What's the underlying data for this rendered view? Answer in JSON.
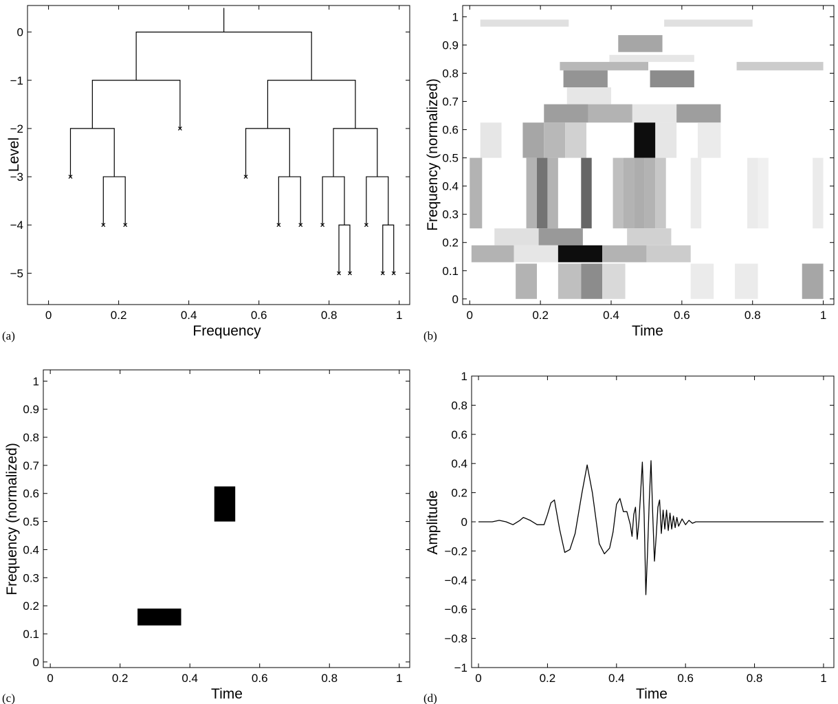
{
  "figure": {
    "panel_labels": [
      "(a)",
      "(b)",
      "(c)",
      "(d)"
    ]
  },
  "chart_data": [
    {
      "panel": "(a)",
      "type": "tree",
      "title": "",
      "xlabel": "Frequency",
      "ylabel": "Level",
      "xlim": [
        -0.06,
        1.03
      ],
      "ylim": [
        -5.65,
        0.55
      ],
      "xticks": [
        0,
        0.2,
        0.4,
        0.6,
        0.8,
        1
      ],
      "xtick_labels": [
        "0",
        "0.2",
        "0.4",
        "0.6",
        "0.8",
        "1"
      ],
      "yticks": [
        0,
        -1,
        -2,
        -3,
        -4,
        -5
      ],
      "ytick_labels": [
        "0",
        "−1",
        "−2",
        "−3",
        "−4",
        "−5"
      ],
      "grid": false,
      "root": {
        "x": 0.5,
        "level": 0
      },
      "splits": [
        {
          "level": 0,
          "x_from": 0.25,
          "x_to": 0.75
        },
        {
          "level": -1,
          "x_from": 0.125,
          "x_to": 0.375
        },
        {
          "level": -1,
          "x_from": 0.625,
          "x_to": 0.875
        },
        {
          "level": -2,
          "x_from": 0.0625,
          "x_to": 0.1875
        },
        {
          "level": -2,
          "x_from": 0.5625,
          "x_to": 0.6875
        },
        {
          "level": -2,
          "x_from": 0.8125,
          "x_to": 0.9375
        },
        {
          "level": -3,
          "x_from": 0.15625,
          "x_to": 0.21875
        },
        {
          "level": -3,
          "x_from": 0.65625,
          "x_to": 0.71875
        },
        {
          "level": -3,
          "x_from": 0.78125,
          "x_to": 0.84375
        },
        {
          "level": -3,
          "x_from": 0.90625,
          "x_to": 0.96875
        },
        {
          "level": -4,
          "x_from": 0.828125,
          "x_to": 0.859375
        },
        {
          "level": -4,
          "x_from": 0.953125,
          "x_to": 0.984375
        }
      ],
      "leaves": [
        {
          "x": 0.375,
          "level": -2
        },
        {
          "x": 0.0625,
          "level": -3
        },
        {
          "x": 0.5625,
          "level": -3
        },
        {
          "x": 0.15625,
          "level": -4
        },
        {
          "x": 0.21875,
          "level": -4
        },
        {
          "x": 0.65625,
          "level": -4
        },
        {
          "x": 0.71875,
          "level": -4
        },
        {
          "x": 0.78125,
          "level": -4
        },
        {
          "x": 0.90625,
          "level": -4
        },
        {
          "x": 0.828125,
          "level": -5
        },
        {
          "x": 0.859375,
          "level": -5
        },
        {
          "x": 0.953125,
          "level": -5
        },
        {
          "x": 0.984375,
          "level": -5
        }
      ]
    },
    {
      "panel": "(b)",
      "type": "heatmap",
      "title": "",
      "xlabel": "Time",
      "ylabel": "Frequency (normalized)",
      "xlim": [
        -0.02,
        1.03
      ],
      "ylim": [
        -0.02,
        1.04
      ],
      "xticks": [
        0,
        0.2,
        0.4,
        0.6,
        0.8,
        1
      ],
      "xtick_labels": [
        "0",
        "0.2",
        "0.4",
        "0.6",
        "0.8",
        "1"
      ],
      "yticks": [
        0,
        0.1,
        0.2,
        0.3,
        0.4,
        0.5,
        0.6,
        0.7,
        0.8,
        0.9,
        1
      ],
      "ytick_labels": [
        "0",
        "0.1",
        "0.2",
        "0.3",
        "0.4",
        "0.5",
        "0.6",
        "0.7",
        "0.8",
        "0.9",
        "1"
      ],
      "grid": false,
      "value_meaning": "gray level, 0 = white, 1 = black",
      "tiles": [
        {
          "t0": 0.03,
          "t1": 0.28,
          "f0": 0.965,
          "f1": 0.99,
          "v": 0.12
        },
        {
          "t0": 0.55,
          "t1": 0.8,
          "f0": 0.965,
          "f1": 0.99,
          "v": 0.12
        },
        {
          "t0": 0.42,
          "t1": 0.545,
          "f0": 0.875,
          "f1": 0.935,
          "v": 0.35
        },
        {
          "t0": 0.395,
          "t1": 0.635,
          "f0": 0.84,
          "f1": 0.865,
          "v": 0.1
        },
        {
          "t0": 0.255,
          "t1": 0.505,
          "f0": 0.81,
          "f1": 0.84,
          "v": 0.28
        },
        {
          "t0": 0.755,
          "t1": 1.0,
          "f0": 0.81,
          "f1": 0.84,
          "v": 0.2
        },
        {
          "t0": 0.265,
          "t1": 0.39,
          "f0": 0.75,
          "f1": 0.81,
          "v": 0.42
        },
        {
          "t0": 0.51,
          "t1": 0.635,
          "f0": 0.75,
          "f1": 0.81,
          "v": 0.45
        },
        {
          "t0": 0.275,
          "t1": 0.4,
          "f0": 0.69,
          "f1": 0.75,
          "v": 0.1
        },
        {
          "t0": 0.21,
          "t1": 0.335,
          "f0": 0.625,
          "f1": 0.69,
          "v": 0.38
        },
        {
          "t0": 0.335,
          "t1": 0.46,
          "f0": 0.625,
          "f1": 0.69,
          "v": 0.3
        },
        {
          "t0": 0.46,
          "t1": 0.585,
          "f0": 0.625,
          "f1": 0.69,
          "v": 0.1
        },
        {
          "t0": 0.585,
          "t1": 0.71,
          "f0": 0.625,
          "f1": 0.69,
          "v": 0.38
        },
        {
          "t0": 0.03,
          "t1": 0.09,
          "f0": 0.5,
          "f1": 0.625,
          "v": 0.1
        },
        {
          "t0": 0.15,
          "t1": 0.21,
          "f0": 0.5,
          "f1": 0.625,
          "v": 0.35
        },
        {
          "t0": 0.21,
          "t1": 0.27,
          "f0": 0.5,
          "f1": 0.625,
          "v": 0.28
        },
        {
          "t0": 0.27,
          "t1": 0.33,
          "f0": 0.5,
          "f1": 0.625,
          "v": 0.18
        },
        {
          "t0": 0.465,
          "t1": 0.525,
          "f0": 0.5,
          "f1": 0.625,
          "v": 0.95
        },
        {
          "t0": 0.525,
          "t1": 0.585,
          "f0": 0.5,
          "f1": 0.625,
          "v": 0.1
        },
        {
          "t0": 0.645,
          "t1": 0.71,
          "f0": 0.5,
          "f1": 0.625,
          "v": 0.08
        },
        {
          "t0": 0.0,
          "t1": 0.035,
          "f0": 0.25,
          "f1": 0.5,
          "v": 0.3
        },
        {
          "t0": 0.16,
          "t1": 0.19,
          "f0": 0.25,
          "f1": 0.5,
          "v": 0.3
        },
        {
          "t0": 0.19,
          "t1": 0.22,
          "f0": 0.25,
          "f1": 0.5,
          "v": 0.55
        },
        {
          "t0": 0.22,
          "t1": 0.25,
          "f0": 0.25,
          "f1": 0.5,
          "v": 0.3
        },
        {
          "t0": 0.315,
          "t1": 0.345,
          "f0": 0.25,
          "f1": 0.5,
          "v": 0.6
        },
        {
          "t0": 0.405,
          "t1": 0.435,
          "f0": 0.25,
          "f1": 0.5,
          "v": 0.25
        },
        {
          "t0": 0.435,
          "t1": 0.465,
          "f0": 0.25,
          "f1": 0.5,
          "v": 0.3
        },
        {
          "t0": 0.465,
          "t1": 0.495,
          "f0": 0.25,
          "f1": 0.5,
          "v": 0.32
        },
        {
          "t0": 0.495,
          "t1": 0.525,
          "f0": 0.25,
          "f1": 0.5,
          "v": 0.3
        },
        {
          "t0": 0.525,
          "t1": 0.555,
          "f0": 0.25,
          "f1": 0.5,
          "v": 0.22
        },
        {
          "t0": 0.625,
          "t1": 0.655,
          "f0": 0.25,
          "f1": 0.5,
          "v": 0.08
        },
        {
          "t0": 0.785,
          "t1": 0.815,
          "f0": 0.25,
          "f1": 0.5,
          "v": 0.08
        },
        {
          "t0": 0.815,
          "t1": 0.845,
          "f0": 0.25,
          "f1": 0.5,
          "v": 0.06
        },
        {
          "t0": 0.97,
          "t1": 1.0,
          "f0": 0.25,
          "f1": 0.5,
          "v": 0.08
        },
        {
          "t0": 0.07,
          "t1": 0.195,
          "f0": 0.19,
          "f1": 0.25,
          "v": 0.12
        },
        {
          "t0": 0.195,
          "t1": 0.32,
          "f0": 0.19,
          "f1": 0.25,
          "v": 0.4
        },
        {
          "t0": 0.445,
          "t1": 0.57,
          "f0": 0.19,
          "f1": 0.25,
          "v": 0.18
        },
        {
          "t0": 0.005,
          "t1": 0.125,
          "f0": 0.13,
          "f1": 0.19,
          "v": 0.3
        },
        {
          "t0": 0.125,
          "t1": 0.25,
          "f0": 0.13,
          "f1": 0.19,
          "v": 0.1
        },
        {
          "t0": 0.25,
          "t1": 0.375,
          "f0": 0.13,
          "f1": 0.19,
          "v": 0.95
        },
        {
          "t0": 0.375,
          "t1": 0.5,
          "f0": 0.13,
          "f1": 0.19,
          "v": 0.3
        },
        {
          "t0": 0.5,
          "t1": 0.625,
          "f0": 0.13,
          "f1": 0.19,
          "v": 0.2
        },
        {
          "t0": 0.13,
          "t1": 0.19,
          "f0": 0.0,
          "f1": 0.125,
          "v": 0.3
        },
        {
          "t0": 0.25,
          "t1": 0.315,
          "f0": 0.0,
          "f1": 0.125,
          "v": 0.25
        },
        {
          "t0": 0.315,
          "t1": 0.375,
          "f0": 0.0,
          "f1": 0.125,
          "v": 0.45
        },
        {
          "t0": 0.375,
          "t1": 0.44,
          "f0": 0.0,
          "f1": 0.125,
          "v": 0.15
        },
        {
          "t0": 0.625,
          "t1": 0.69,
          "f0": 0.0,
          "f1": 0.125,
          "v": 0.08
        },
        {
          "t0": 0.75,
          "t1": 0.815,
          "f0": 0.0,
          "f1": 0.125,
          "v": 0.08
        },
        {
          "t0": 0.94,
          "t1": 1.0,
          "f0": 0.0,
          "f1": 0.125,
          "v": 0.35
        }
      ]
    },
    {
      "panel": "(c)",
      "type": "heatmap",
      "title": "",
      "xlabel": "Time",
      "ylabel": "Frequency (normalized)",
      "xlim": [
        -0.02,
        1.03
      ],
      "ylim": [
        -0.02,
        1.04
      ],
      "xticks": [
        0,
        0.2,
        0.4,
        0.6,
        0.8,
        1
      ],
      "xtick_labels": [
        "0",
        "0.2",
        "0.4",
        "0.6",
        "0.8",
        "1"
      ],
      "yticks": [
        0,
        0.1,
        0.2,
        0.3,
        0.4,
        0.5,
        0.6,
        0.7,
        0.8,
        0.9,
        1
      ],
      "ytick_labels": [
        "0",
        "0.1",
        "0.2",
        "0.3",
        "0.4",
        "0.5",
        "0.6",
        "0.7",
        "0.8",
        "0.9",
        "1"
      ],
      "grid": false,
      "value_meaning": "gray level, 0 = white, 1 = black",
      "tiles": [
        {
          "t0": 0.25,
          "t1": 0.375,
          "f0": 0.13,
          "f1": 0.19,
          "v": 1.0
        },
        {
          "t0": 0.47,
          "t1": 0.53,
          "f0": 0.5,
          "f1": 0.625,
          "v": 1.0
        }
      ]
    },
    {
      "panel": "(d)",
      "type": "line",
      "title": "",
      "xlabel": "Time",
      "ylabel": "Amplitude",
      "xlim": [
        -0.02,
        1.03
      ],
      "ylim": [
        -1,
        1
      ],
      "xticks": [
        0,
        0.2,
        0.4,
        0.6,
        0.8,
        1
      ],
      "xtick_labels": [
        "0",
        "0.2",
        "0.4",
        "0.6",
        "0.8",
        "1"
      ],
      "yticks": [
        1,
        0.8,
        0.6,
        0.4,
        0.2,
        0,
        -0.2,
        -0.4,
        -0.6,
        -0.8,
        -1
      ],
      "ytick_labels": [
        "1",
        "0.8",
        "0.6",
        "0.4",
        "0.2",
        "0",
        "−0.2",
        "−0.4",
        "−0.6",
        "−0.8",
        "−1"
      ],
      "grid": false,
      "series": [
        {
          "x": [
            0,
            0.02,
            0.04,
            0.06,
            0.08,
            0.1,
            0.12,
            0.13,
            0.15,
            0.17,
            0.19,
            0.2,
            0.21,
            0.22,
            0.235,
            0.25,
            0.265,
            0.28,
            0.3,
            0.315,
            0.33,
            0.35,
            0.365,
            0.38,
            0.39,
            0.4,
            0.41,
            0.42,
            0.43,
            0.44,
            0.445,
            0.45,
            0.455,
            0.46,
            0.465,
            0.47,
            0.475,
            0.48,
            0.485,
            0.49,
            0.495,
            0.5,
            0.505,
            0.51,
            0.515,
            0.52,
            0.525,
            0.53,
            0.535,
            0.54,
            0.545,
            0.55,
            0.555,
            0.56,
            0.565,
            0.57,
            0.575,
            0.58,
            0.59,
            0.6,
            0.61,
            0.62,
            0.63,
            0.64,
            0.65,
            0.66,
            0.7,
            0.8,
            0.9,
            1.0
          ],
          "y": [
            0,
            0,
            0,
            0.01,
            0.0,
            -0.02,
            0.01,
            0.03,
            0.01,
            -0.02,
            -0.02,
            0.05,
            0.13,
            0.15,
            -0.05,
            -0.21,
            -0.19,
            -0.08,
            0.2,
            0.39,
            0.2,
            -0.15,
            -0.22,
            -0.18,
            -0.07,
            0.12,
            0.16,
            0.07,
            0.07,
            -0.02,
            -0.1,
            0.05,
            0.1,
            -0.12,
            0.0,
            0.2,
            0.41,
            0.05,
            -0.5,
            -0.2,
            0.15,
            0.42,
            0.05,
            -0.27,
            -0.1,
            0.1,
            0.15,
            -0.08,
            0.08,
            -0.05,
            0.08,
            -0.06,
            0.06,
            -0.05,
            0.04,
            -0.04,
            0.03,
            -0.03,
            0.02,
            -0.02,
            0.01,
            -0.01,
            0.0,
            0.0,
            0,
            0,
            0,
            0,
            0,
            0
          ]
        }
      ]
    }
  ]
}
